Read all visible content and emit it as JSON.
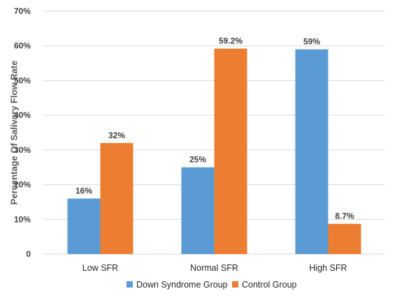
{
  "chart_data": {
    "type": "bar",
    "categories": [
      "Low SFR",
      "Normal SFR",
      "High SFR"
    ],
    "series": [
      {
        "name": "Down Syndrome Group",
        "values": [
          16,
          25,
          59
        ],
        "labels": [
          "16%",
          "25%",
          "59%"
        ],
        "color": "#5B9BD5"
      },
      {
        "name": "Control Group",
        "values": [
          32,
          59.2,
          8.7
        ],
        "labels": [
          "32%",
          "59.2%",
          "8.7%"
        ],
        "color": "#ED7D31"
      }
    ],
    "ylabel": "Percentage Of Salivary Flow Rate",
    "ylim": [
      0,
      70
    ],
    "yticks": [
      0,
      10,
      20,
      30,
      40,
      50,
      60,
      70
    ],
    "ytick_labels": [
      "0",
      "10%",
      "20%",
      "30%",
      "40%",
      "50%",
      "60%",
      "70%"
    ],
    "grid": true,
    "legend": "bottom",
    "gridline_color": "#D9D9D9"
  }
}
